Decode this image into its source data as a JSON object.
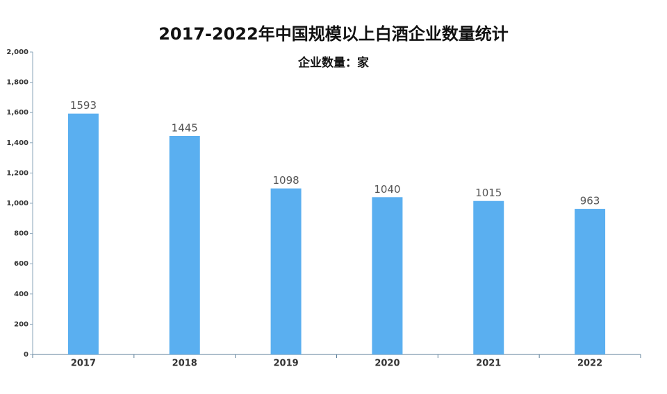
{
  "chart_data": {
    "type": "bar",
    "title": "2017-2022年中国规模以上白酒企业数量统计",
    "subtitle": "企业数量：家",
    "categories": [
      "2017",
      "2018",
      "2019",
      "2020",
      "2021",
      "2022"
    ],
    "values": [
      1593,
      1445,
      1098,
      1040,
      1015,
      963
    ],
    "color": "#5aaff0",
    "ylim": [
      0,
      2000
    ],
    "yticks": [
      0,
      200,
      400,
      600,
      800,
      {
        "value": 1000,
        "label": "1,000"
      },
      {
        "value": 1200,
        "label": "1,200"
      },
      {
        "value": 1400,
        "label": "1,400"
      },
      {
        "value": 1600,
        "label": "1,600"
      },
      {
        "value": 1800,
        "label": "1,800"
      },
      {
        "value": 2000,
        "label": "2,000"
      }
    ],
    "grid": false
  }
}
